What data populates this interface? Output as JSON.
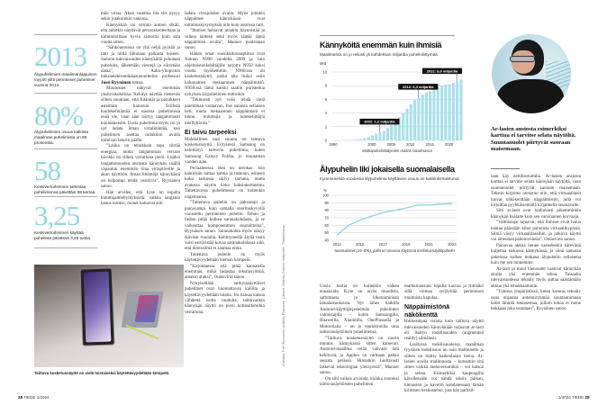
{
  "stats": [
    {
      "value": "2013",
      "caption": "Älypuhelimien maailmanlaajuinen myynti ylitti perinteiset puhelimet vuonna 2013."
    },
    {
      "value": "80%",
      "caption": "Älypuhelimien osuus kaikista maailman puhelimista on 80 prosenttia."
    },
    {
      "value": "58",
      "caption": "Keskivertoihminen tarkistaa puhelimensa päivittäin 58 kertaa."
    },
    {
      "value": "3,25",
      "caption": "Keskivertoihminen käyttää puhelinta päivässä 3,25 tuntia."
    }
  ],
  "photo_caption": "Taittuva kosketusnäyttö on vielä toistaiseksi käytettävyydeltään kömpelö.",
  "columns": [
    [
      {
        "t": "mān virtaa. Akun vaatima tila siis pysyy sekin jotakuinkin vakiona."
      },
      {
        "t": "Kännykkää voi verrata autoon sikäli, että autotkin näyttävät perusrakenteeltaan ja toiminnoiltaan hyvin samoilta kuin sata vuotta sitten."
      },
      {
        "t": "”Sähköautoissa on yhä neljä pyörää ja ratti ja niillä liikutaan paikasta toiseen. Samoin tulevaisuuden kännykällä puhutaan puheluita, lähetetään viestejä ja siirretään dataa”, Aalto-yliopiston mikroelektroniikkasuunnittelun professori ",
        "b": "Jussi Ryynänen",
        "a": " toteaa."
      },
      {
        "t": "Muutokset näkyvät enemmän yksityiskohdissa. Kehitys näyttää menevän siihen suuntaan, että liitännät ja painikkeet asteittain katoavat. Erillistä kuulokeliitäntää ei uusissa puhelimissa enää ole, vaan ääni siirtyy langattomasti kuulokkeisiin. Uusia puhelimia myös voi jo nyt ladata ilman virtaliitäntää, kun puhelimen asettaa induktion avulla toimivan laturin päälle."
      },
      {
        "t": "”Lanka on tehokkain tapa siirtää energiaa, mutta langattoman version hävikki on siihen verrattuna pieni. Lisäksi langattomuuden ansiosta kännykän sisällä vapautuu enemmän tilaa virtapiireille ja akun käyttöön. Ilman liitäntöjä kännykästä on helpompi tehdä vesitiivis”, Ryynänen sanoo."
      },
      {
        "t": "Hän arvelee, että kyse on lopulta kuluttajamieltymyksistä: vaikka langaton lataus toimisi, monet haluavat silti"
      }
    ],
    [
      {
        "t": "ladata virtajohdon avulla. Myös joitakin näppäimet kännykässä ovat tottumuskysymyksiä niin kuin autoissa ratti."
      },
      {
        "t": "”Ihmiset haluavat ainakin käynnistää ja sulkea laitteen sekä myös säätää ääntä näppäimien avulla”, Manner puolestaan sanoo."
      },
      {
        "t": "Hänen omat suosikkikonseptinsa ovat Nokian N900 vuodelta 2009 ja vain ohjelmistonkehittäjille tarjottu N950 kaksi vuotta myöhemmin. N900:ssa oli kosketusnäyttö, jonka alta liukui esiin kokonainen mekaaninen näppäimistö. N950:ssä tämä kaikki saatiin puristettua nykyisen älypuhelimen mittoihin."
      },
      {
        "t": "”Teknisesti nyt voisi tehdä vielä paremman vastaavan. Itse ostaisin sellaisen heti, mutta mekaaninen näppäimistö ei tunnu kuluttajia ja laitekehittäjiä miellyttävän.”"
      },
      {
        "h": "Ei taivu tarpeeksi"
      },
      {
        "t": "Mahdollinen uusi suunta on taittuva kosketusnäyttö. Erityisesti Samsung on kehittänyt taittuvia puhelimia, kuten Samsung Galaxy Foldia, jo muutaman vuoden ajan."
      },
      {
        "t": "Periaatteessa idea on nerokas: kun kännykän taittaa kahtia ja taskuun, esineen koko taskussa säilyy samana, mutta avatessa näytön koko kaksinkertaistuu. Taitettavassa puhelimessa on kuitenkin ongelmansa."
      },
      {
        "t": "”Taitettava puhelin on paksumpi ja painavampi kuin samalla suorituskyvyllä varustettu perinteinen puhelin. Tehon ja tiedon pitää kulkea saranakohdasta, ja se vaikeuttaa komponenttien suunnittelua”, Ryynänen sanoo. Saranakohta myös näkyy ikävästi ruudulla. Kehittyneellä älyllä tosin voisi esiväristää kuvaa saranakohdassa niin, että ihmissilmä ei saumaa erota."
      },
      {
        "t": "Taitettava puhelin on myös käytettävyydeltään hieman kömpelö."
      },
      {
        "t": "”Kirjoittaessa sitä pitää kannatella enemmän, mikä hidastaa tekstinsyöttöä, ainakin aluksi”, Oulasvirta sanoo."
      },
      {
        "t": "Nykyisellään taittuvanäyttöiset puhelimet ovat huomattavan kalliita ja käytettävyydeltään hitaita. Jos haluaa katsoa viihdettä isolta ruudulta, taittuvankin kännykän näyttö on pieni kotiteattereihin verrattuna."
      }
    ],
    [
      {
        "t": "Uusia tuulia on kuitenkin vaikea ennakoida. Kyse on myös muodista, sattumasta ja liiketoiminnan lainalaisuuksista. Nyt lähes kaikilla Android-käyttöjärjestelmän puhelinten valmistajilla – kuten Samsungilla, Huaweilla, Xiaomilla, OnePlussalla ja Motorolalla – on jo markkinoilla oma taittuvanäyttöinen puhelimensa."
      },
      {
        "t": "”Taittuva kosketusnäyttö on suurin muutos kännykässä sitten kameran. Android-maailma vetää vahvasti tätä kehitystä, ja Applen on varmaan pakko seurata perässä. Hinnatkin luultavasti laskevat teknologian yleistyessä”, Manner sanoo."
      },
      {
        "t": "On silti vaikea arvioida, kuinka suureksi taittuvanäyttöisten puhelinten"
      }
    ],
    [
      {
        "t": "markkinaosuus lopulta kasvaa ja riittääkö sillä voimaa syrjäyttää perinteisen muotoista kapulaa."
      },
      {
        "h": "Näppäimistönä näkökenttä"
      },
      {
        "t": "Huikeampaa visiota kuin taittuva näyttö tulevaisuuden kännykkään tarjoavat ar-lasit eli lisätyn todellisuuden (augmented reality) silmälasit."
      },
      {
        "t": "Lisätyssä todellisuudessa maailman fyysinen todellisuus on osin mallinnettu ja siihen on lisätty kaikenlaista tietoa. Ar-lasien avulla mallinnosta – kutsuttiin sitä sitten vaikka metaversumiksi – voi katsoa ja selata. Esimerkiksi kaupungilla kävellessään voi nähdä taksin paikan, hinnaston ja kaverin kohdatessaan tämän kriittisen keskustelun, jota hän parhail-"
      }
    ],
    [
      {
        "t": "laan käy nettifoorumilla. Ar-lasien ansiosta karttaa ei tarvitse selata kännykän näytöltä, vaan suuntanuolet piirtyvät suoraan maisemaan. Tekstin kirjoitus onnistuu niin, että virtuaalilasit luovat näkökenttään näppäimistön, jolla voi kirjoittaa pyyhkäisemällä kirjaimelta seuraavalle."
      },
      {
        "t": "Silti ar-lasit ovat luultavasti pikemminkin kännykän lisälaite kuin sen varsinainen korvaaja."
      },
      {
        "t": "”Valmistajat tajuavat, että ihmiset eivät halua kantaa päässään kilon painoista virtuaalikypärää. Silmä väsyy virtuaalilaseihin, ja jatkuva käyttö voi aiheuttaa pahoinvointia”, Oulasvirta sanoo."
      },
      {
        "t": "Painavaa akkua lienee vastedeskin kätevintä kuljettaa taskussa kännykässä, ja siinä samassa paketissa kulkee mukana älypuhelin sellaisena kuin me sen tunnemme."
      },
      {
        "t": "Ar-lasit ja muut hienoudet vaativat kännykän akulta yhä enemmän tehoa. Toisaalta tulevaisuudessa tekoäly myös auttaa säästämään akkua yhä tehokkaammin."
      },
      {
        "t": "”Tutussa ympäristössä, kuten kotona, tekoäly osaa ohjastaa antenniryhmää suuntautumaan kohti lähintä tukiasemaa, jolloin tehoa ei mene hukkaan joka suuntaan”, Ryynänen sanoo."
      }
    ]
  ],
  "pull_quote": "Ar-lasien ansiosta esimerkiksi karttaa ei tarvitse selata näytöltä. Suuntanuolet piirtyvät suoraan maisemaan.",
  "credit": "Grafiikka: Petri Ronkainen ja Mikko Pöyhönen. Lähteet: Statista, Gartner, eMarketer, Tilastokeskus.",
  "footer": {
    "left_num": "28",
    "left_text": "TIEDE 1/2024",
    "right_text": "1/2024 TIEDE",
    "right_num": "29"
  },
  "colors": {
    "accent": "#8fd6e4",
    "bar": "#a8e0ea",
    "line": "#8fd6e4"
  },
  "chart_data": [
    {
      "type": "bar",
      "title": "Kännyköitä enemmän kuin ihmisiä",
      "subtitle": "Maailmassa on jo reilusti yli kahdeksan miljardia puhelinliittymää.",
      "ylabel": "Mrd",
      "xlabel": "Matkapuhelinliittymien määrä maailmassa",
      "ylim": [
        0,
        10
      ],
      "yticks": [
        "0",
        "2",
        "4",
        "6",
        "8",
        "10"
      ],
      "xticks": [
        "1990",
        "2000",
        "2005",
        "2010",
        "2015",
        "2020"
      ],
      "grid": true,
      "x": [
        1990,
        1991,
        1992,
        1993,
        1994,
        1995,
        1996,
        1997,
        1998,
        1999,
        2000,
        2001,
        2002,
        2003,
        2004,
        2005,
        2006,
        2007,
        2008,
        2009,
        2010,
        2011,
        2012,
        2013,
        2014,
        2015,
        2016,
        2017,
        2018,
        2019,
        2020,
        2021,
        2022,
        2023
      ],
      "values": [
        0.01,
        0.02,
        0.02,
        0.03,
        0.05,
        0.09,
        0.14,
        0.21,
        0.32,
        0.49,
        0.74,
        0.96,
        1.2,
        1.4,
        1.8,
        2.2,
        2.7,
        3.4,
        4.0,
        4.6,
        5.3,
        5.9,
        6.3,
        6.7,
        7.0,
        7.2,
        7.5,
        7.8,
        8.0,
        8.2,
        8.2,
        8.4,
        8.6,
        8.9
      ],
      "annotations": [
        {
          "x": 2002,
          "label": "2002: 1,2 miljardia"
        },
        {
          "x": 2012,
          "label": "2012: 6,3 miljardia"
        },
        {
          "x": 2022,
          "label": "2022: 8,6 miljardia"
        }
      ]
    },
    {
      "type": "line",
      "title": "Älypuhelin liki jokaisella suomalaisella",
      "subtitle": "Kymmenessä vuodessa älypuhelinta käyttävien osuus on kaksinkertaistunut.",
      "ylabel": "%",
      "xlabel": "Suomalaiset (16–89v), joilla on omassa käytössä kosketusnäyttöpuhelin",
      "ylim": [
        40,
        100
      ],
      "yticks": [
        "40",
        "50",
        "60",
        "70",
        "80",
        "90",
        "100"
      ],
      "xticks": [
        "2013",
        "2015",
        "2017",
        "2019",
        "2021",
        "2023"
      ],
      "grid": true,
      "x": [
        2013,
        2014,
        2015,
        2016,
        2017,
        2018,
        2019,
        2020,
        2021,
        2022,
        2023
      ],
      "values": [
        47,
        60,
        67,
        72,
        77,
        80,
        83,
        87,
        87,
        88,
        89
      ]
    }
  ]
}
